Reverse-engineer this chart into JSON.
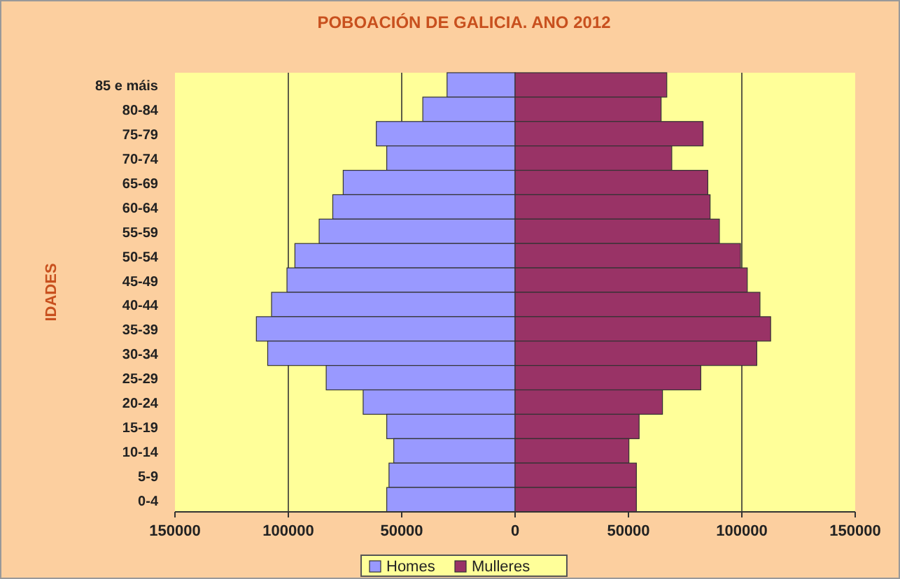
{
  "chart_data": {
    "type": "bar",
    "orientation": "horizontal",
    "stacked": true,
    "title": "POBOACIÓN DE GALICIA. ANO 2012",
    "ylabel": "IDADES",
    "categories": [
      "85 e máis",
      "80-84",
      "75-79",
      "70-74",
      "65-69",
      "60-64",
      "55-59",
      "50-54",
      "45-49",
      "40-44",
      "35-39",
      "30-34",
      "25-29",
      "20-24",
      "15-19",
      "10-14",
      "5-9",
      "0-4"
    ],
    "series": [
      {
        "name": "Homes",
        "color": "#9999ff",
        "values": [
          -30000,
          -40700,
          -61200,
          -56600,
          -75800,
          -80400,
          -86400,
          -97100,
          -100600,
          -107400,
          -114100,
          -109100,
          -83300,
          -67000,
          -56600,
          -53500,
          -55600,
          -56600
        ]
      },
      {
        "name": "Mulleres",
        "color": "#993366",
        "values": [
          66900,
          64400,
          82900,
          69100,
          85000,
          86000,
          90100,
          99400,
          102400,
          108000,
          112700,
          106600,
          81900,
          65000,
          54700,
          50200,
          53500,
          53500
        ]
      }
    ],
    "xlim": [
      -150000,
      150000
    ],
    "xticks": [
      {
        "value": -150000,
        "label": "150000"
      },
      {
        "value": -100000,
        "label": "100000"
      },
      {
        "value": -50000,
        "label": "50000"
      },
      0,
      50000,
      100000,
      150000
    ],
    "grid": "x",
    "legend": "bottom"
  }
}
